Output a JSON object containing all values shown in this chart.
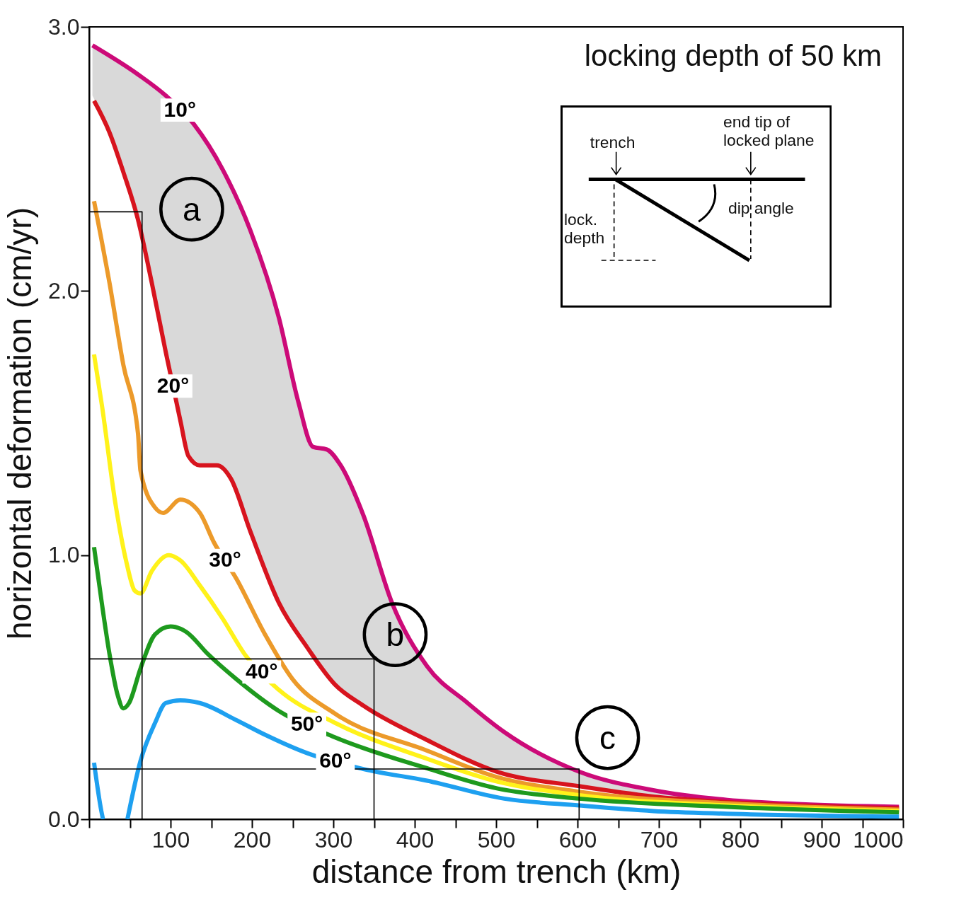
{
  "chart_data": {
    "type": "line",
    "xlabel": "distance from trench (km)",
    "ylabel": "horizontal deformation (cm/yr)",
    "xlim": [
      0,
      1000
    ],
    "ylim": [
      0,
      3
    ],
    "xticks": [
      {
        "value": 0,
        "label": null
      },
      {
        "value": 50,
        "label": null
      },
      100,
      {
        "value": 150,
        "label": null
      },
      200,
      {
        "value": 250,
        "label": null
      },
      300,
      {
        "value": 350,
        "label": null
      },
      400,
      {
        "value": 450,
        "label": null
      },
      500,
      {
        "value": 550,
        "label": null
      },
      600,
      {
        "value": 650,
        "label": null
      },
      700,
      {
        "value": 750,
        "label": null
      },
      800,
      {
        "value": 850,
        "label": null
      },
      900,
      {
        "value": 950,
        "label": null
      },
      1000
    ],
    "yticks": [
      {
        "value": 0,
        "label": "0.0"
      },
      {
        "value": 1,
        "label": "1.0"
      },
      {
        "value": 2,
        "label": "2.0"
      },
      {
        "value": 3,
        "label": "3.0"
      }
    ],
    "series": [
      {
        "name": "10°",
        "color": "#cc0a78",
        "x": [
          4,
          60,
          94,
          129,
          164,
          198,
          233,
          257,
          275,
          292,
          309,
          337,
          372,
          415,
          465,
          510,
          602,
          693,
          784,
          875,
          995
        ],
        "values": [
          2.93,
          2.82,
          2.74,
          2.63,
          2.46,
          2.23,
          1.9,
          1.58,
          1.41,
          1.4,
          1.34,
          1.15,
          0.82,
          0.58,
          0.44,
          0.33,
          0.18,
          0.11,
          0.073,
          0.057,
          0.047
        ],
        "lower": [
          2.74,
          2.27,
          1.77,
          1.36,
          1.32,
          1.09,
          0.82,
          0.7,
          0.62,
          0.55,
          0.5,
          0.43,
          0.36,
          0.3,
          0.23,
          0.175,
          0.125,
          0.086,
          0.065,
          0.055,
          0.042
        ],
        "upper": [
          2.93,
          2.82,
          2.74,
          2.63,
          2.46,
          2.23,
          1.9,
          1.58,
          1.41,
          1.4,
          1.34,
          1.15,
          0.82,
          0.58,
          0.44,
          0.33,
          0.18,
          0.11,
          0.073,
          0.057,
          0.047
        ]
      },
      {
        "name": "20°",
        "color": "#d7141e",
        "x": [
          6,
          25,
          42,
          60,
          77,
          94,
          112,
          122,
          136,
          157,
          174,
          198,
          233,
          268,
          302,
          337,
          415,
          501,
          602,
          693,
          784,
          995
        ],
        "values": [
          2.72,
          2.6,
          2.45,
          2.27,
          2.03,
          1.77,
          1.51,
          1.375,
          1.34,
          1.34,
          1.29,
          1.09,
          0.82,
          0.65,
          0.51,
          0.43,
          0.3,
          0.18,
          0.125,
          0.086,
          0.065,
          0.042
        ]
      },
      {
        "name": "30°",
        "color": "#ec9a2a",
        "x": [
          6,
          25,
          42,
          60,
          63,
          81,
          91,
          112,
          136,
          153,
          181,
          216,
          250,
          302,
          415,
          501,
          602,
          784,
          995
        ],
        "values": [
          2.34,
          2.03,
          1.72,
          1.46,
          1.32,
          1.18,
          1.16,
          1.21,
          1.16,
          1.05,
          0.91,
          0.7,
          0.53,
          0.4,
          0.26,
          0.16,
          0.104,
          0.06,
          0.036
        ]
      },
      {
        "name": "40°",
        "color": "#fff21a",
        "x": [
          6,
          16,
          32,
          46,
          56,
          63,
          77,
          98,
          112,
          136,
          164,
          191,
          233,
          302,
          415,
          501,
          602,
          784,
          995
        ],
        "values": [
          1.76,
          1.56,
          1.2,
          0.97,
          0.865,
          0.855,
          0.94,
          1.0,
          0.98,
          0.885,
          0.76,
          0.625,
          0.49,
          0.365,
          0.229,
          0.143,
          0.091,
          0.052,
          0.031
        ]
      },
      {
        "name": "50°",
        "color": "#1e9a1e",
        "x": [
          6,
          15,
          25,
          35,
          42,
          49,
          63,
          81,
          100,
          119,
          146,
          181,
          233,
          302,
          415,
          501,
          602,
          784,
          995
        ],
        "values": [
          1.03,
          0.83,
          0.625,
          0.47,
          0.42,
          0.44,
          0.57,
          0.7,
          0.73,
          0.71,
          0.625,
          0.53,
          0.41,
          0.31,
          0.193,
          0.117,
          0.078,
          0.047,
          0.026
        ]
      },
      {
        "name": "60°",
        "color": "#1ea0f0",
        "x": [
          6,
          15,
          17,
          32,
          47,
          63,
          81,
          94,
          112,
          136,
          181,
          216,
          268,
          337,
          415,
          510,
          602,
          693,
          784,
          995
        ],
        "values": [
          0.214,
          0.03,
          0,
          null,
          0,
          0.22,
          0.365,
          0.44,
          0.45,
          0.44,
          0.375,
          0.32,
          0.25,
          0.19,
          0.146,
          0.078,
          0.052,
          0.031,
          0.021,
          0.01
        ]
      },
      {
        "color": "#000000",
        "x": [
          0,
          65,
          65
        ],
        "values": [
          2.3,
          2.3,
          0
        ]
      },
      {
        "color": "#000000",
        "x": [
          0,
          350,
          350
        ],
        "values": [
          0.607,
          0.607,
          0
        ]
      },
      {
        "color": "#000000",
        "x": [
          0,
          602,
          602
        ],
        "values": [
          0.19,
          0.19,
          0
        ]
      }
    ],
    "annotations": [
      "locking depth of 50 km",
      "trench",
      "end tip of locked plane",
      "lock. depth",
      "dip angle",
      "a",
      "b",
      "c"
    ]
  }
}
